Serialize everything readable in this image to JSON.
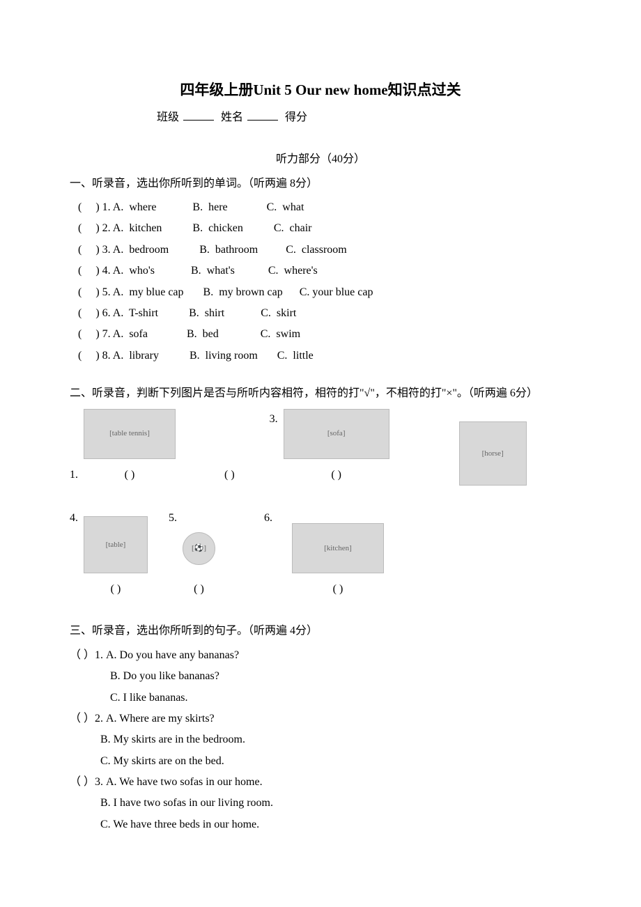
{
  "title": "四年级上册Unit 5 Our new home知识点过关",
  "header": {
    "class_label": "班级",
    "name_label": "姓名",
    "score_label": "得分"
  },
  "listening_header": "听力部分（40分）",
  "section1": {
    "instruction": "一、听录音，选出你所听到的单词。（听两遍 8分）",
    "items": [
      {
        "n": "1",
        "a": "where",
        "b": "here",
        "c": "what"
      },
      {
        "n": "2",
        "a": "kitchen",
        "b": "chicken",
        "c": "chair"
      },
      {
        "n": "3",
        "a": "bedroom",
        "b": "bathroom",
        "c": "classroom"
      },
      {
        "n": "4",
        "a": "who's",
        "b": "what's",
        "c": "where's"
      },
      {
        "n": "5",
        "a": "my blue cap",
        "b": "my brown cap",
        "c": "your blue cap"
      },
      {
        "n": "6",
        "a": "T-shirt",
        "b": "shirt",
        "c": "skirt"
      },
      {
        "n": "7",
        "a": "sofa",
        "b": "bed",
        "c": "swim"
      },
      {
        "n": "8",
        "a": "library",
        "b": "living room",
        "c": "little"
      }
    ]
  },
  "section2": {
    "instruction": "二、听录音，判断下列图片是否与所听内容相符，相符的打\"√\"，不相符的打\"×\"。（听两遍 6分）",
    "row1": [
      {
        "n": "1.",
        "desc": "table tennis",
        "w": 130,
        "h": 70
      },
      {
        "n": "3.",
        "desc": "sofa",
        "w": 150,
        "h": 70,
        "label_left": true
      },
      {
        "n": "",
        "desc": "horse",
        "w": 95,
        "h": 90
      }
    ],
    "row2": [
      {
        "n": "4.",
        "desc": "table",
        "w": 90,
        "h": 80
      },
      {
        "n": "5.",
        "desc": "football",
        "w": 45,
        "h": 45,
        "label_inline": true
      },
      {
        "n": "6.",
        "desc": "kitchen",
        "w": 130,
        "h": 70,
        "label_left": true
      }
    ],
    "paren_text": "(    )"
  },
  "section3": {
    "instruction": "三、听录音，选出你所听到的句子。（听两遍 4分）",
    "items": [
      {
        "n": "1",
        "a": "Do you have any bananas?",
        "b": "Do you like bananas?",
        "c": "I like bananas."
      },
      {
        "n": "2",
        "a": "Where are my skirts?",
        "b": "My skirts are in the bedroom.",
        "c": "My skirts are on the bed."
      },
      {
        "n": "3",
        "a": "We have two sofas in our home.",
        "b": "I have two sofas in our living room.",
        "c": "We have three beds in our home."
      }
    ]
  }
}
